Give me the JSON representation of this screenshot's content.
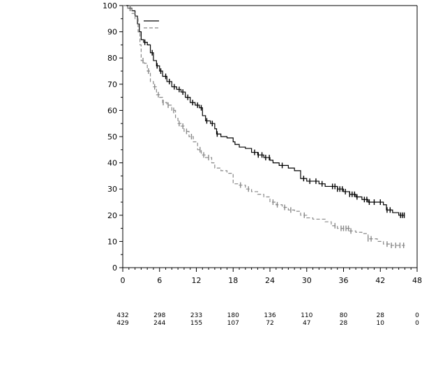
{
  "chart_data": {
    "type": "line",
    "title": "",
    "xlabel": "",
    "ylabel": "",
    "xlim": [
      0,
      48
    ],
    "ylim": [
      0,
      100
    ],
    "x_ticks": [
      0,
      6,
      12,
      18,
      24,
      30,
      36,
      42,
      48
    ],
    "y_ticks": [
      0,
      10,
      20,
      30,
      40,
      50,
      60,
      70,
      80,
      90,
      100
    ],
    "legend": {
      "placement": "top-left",
      "entries": [
        "",
        ""
      ]
    },
    "series": [
      {
        "style": "solid",
        "color": "#000000",
        "step": true,
        "points": [
          [
            0,
            100
          ],
          [
            0.8,
            99
          ],
          [
            1.5,
            98
          ],
          [
            2.0,
            96
          ],
          [
            2.4,
            93
          ],
          [
            2.7,
            90
          ],
          [
            3.0,
            87
          ],
          [
            3.4,
            86
          ],
          [
            4.0,
            85
          ],
          [
            4.5,
            82
          ],
          [
            5.0,
            79
          ],
          [
            5.5,
            77
          ],
          [
            6.0,
            75
          ],
          [
            6.5,
            73
          ],
          [
            7.2,
            71
          ],
          [
            8.0,
            69
          ],
          [
            8.8,
            68
          ],
          [
            9.5,
            67
          ],
          [
            10.2,
            65
          ],
          [
            11.0,
            63
          ],
          [
            11.8,
            62
          ],
          [
            12.5,
            61
          ],
          [
            13.0,
            58
          ],
          [
            13.5,
            56
          ],
          [
            14.3,
            55
          ],
          [
            15.0,
            53
          ],
          [
            15.3,
            51
          ],
          [
            16.0,
            50
          ],
          [
            17.0,
            49.5
          ],
          [
            18.0,
            48
          ],
          [
            18.3,
            47
          ],
          [
            19.0,
            46
          ],
          [
            20.0,
            45.5
          ],
          [
            21.0,
            44
          ],
          [
            22.0,
            43
          ],
          [
            23.0,
            42
          ],
          [
            24.0,
            41
          ],
          [
            24.5,
            40
          ],
          [
            25.5,
            39
          ],
          [
            27.0,
            38
          ],
          [
            28.0,
            37
          ],
          [
            29.0,
            34
          ],
          [
            30.0,
            33
          ],
          [
            32.0,
            32
          ],
          [
            33.0,
            31
          ],
          [
            35.0,
            30
          ],
          [
            36.0,
            29
          ],
          [
            37.0,
            28
          ],
          [
            38.0,
            27
          ],
          [
            39.0,
            26
          ],
          [
            40.0,
            25
          ],
          [
            42.5,
            24
          ],
          [
            43.0,
            22
          ],
          [
            44.0,
            21
          ],
          [
            45.0,
            20
          ],
          [
            46.0,
            20
          ]
        ],
        "censor_ticks": [
          1.2,
          3.6,
          4.8,
          5.6,
          6.2,
          7.0,
          7.6,
          8.4,
          9.2,
          9.8,
          10.6,
          11.4,
          12.2,
          12.8,
          13.7,
          14.6,
          15.4,
          21.5,
          22.1,
          22.7,
          23.3,
          23.9,
          26.0,
          29.5,
          30.5,
          31.5,
          32.5,
          34.2,
          34.6,
          35.0,
          35.4,
          35.8,
          36.3,
          37.0,
          37.4,
          37.8,
          38.2,
          39.4,
          39.8,
          40.2,
          41.0,
          42.0,
          43.1,
          43.6,
          45.3,
          45.6,
          45.9
        ]
      },
      {
        "style": "dashed",
        "color": "#888888",
        "step": true,
        "points": [
          [
            0,
            100
          ],
          [
            0.8,
            99
          ],
          [
            1.5,
            97
          ],
          [
            2.0,
            95
          ],
          [
            2.5,
            90
          ],
          [
            2.8,
            85
          ],
          [
            3.0,
            79
          ],
          [
            3.5,
            78
          ],
          [
            4.0,
            75
          ],
          [
            4.5,
            71
          ],
          [
            5.0,
            69
          ],
          [
            5.5,
            66
          ],
          [
            6.0,
            65
          ],
          [
            6.5,
            63
          ],
          [
            7.2,
            62
          ],
          [
            8.0,
            60
          ],
          [
            8.6,
            57
          ],
          [
            9.0,
            55
          ],
          [
            9.5,
            54
          ],
          [
            10.0,
            52
          ],
          [
            10.8,
            50
          ],
          [
            11.5,
            48
          ],
          [
            12.2,
            45
          ],
          [
            12.8,
            43
          ],
          [
            13.5,
            42
          ],
          [
            14.5,
            40
          ],
          [
            15.0,
            38
          ],
          [
            16.0,
            37
          ],
          [
            17.0,
            36
          ],
          [
            18.0,
            32
          ],
          [
            19.0,
            31.5
          ],
          [
            20.0,
            30
          ],
          [
            21.0,
            29
          ],
          [
            22.0,
            28
          ],
          [
            23.0,
            27
          ],
          [
            24.0,
            25
          ],
          [
            25.0,
            24
          ],
          [
            26.0,
            23
          ],
          [
            27.0,
            22
          ],
          [
            28.0,
            21.5
          ],
          [
            29.0,
            20
          ],
          [
            30.0,
            19
          ],
          [
            31.0,
            18.5
          ],
          [
            33.0,
            17.5
          ],
          [
            34.0,
            16
          ],
          [
            35.0,
            15
          ],
          [
            37.0,
            14
          ],
          [
            38.0,
            13.5
          ],
          [
            39.0,
            13
          ],
          [
            40.0,
            11
          ],
          [
            41.5,
            10
          ],
          [
            42.5,
            9
          ],
          [
            43.5,
            8.5
          ],
          [
            46.0,
            8.5
          ]
        ],
        "censor_ticks": [
          1.2,
          3.3,
          4.2,
          5.2,
          5.8,
          6.6,
          7.4,
          8.3,
          9.2,
          9.8,
          10.4,
          11.2,
          12.6,
          13.2,
          14.0,
          19.2,
          20.5,
          24.5,
          25.2,
          26.4,
          27.4,
          29.6,
          34.6,
          35.6,
          36.0,
          36.4,
          36.8,
          37.2,
          40.0,
          40.5,
          43.1,
          43.8,
          44.5,
          45.2,
          45.8
        ]
      }
    ],
    "risk_table": {
      "x": [
        0,
        6,
        12,
        18,
        24,
        30,
        36,
        42,
        48
      ],
      "rows": [
        [
          "432",
          "298",
          "233",
          "180",
          "136",
          "110",
          "80",
          "28",
          "0"
        ],
        [
          "429",
          "244",
          "155",
          "107",
          "72",
          "47",
          "28",
          "10",
          "0"
        ]
      ]
    }
  }
}
